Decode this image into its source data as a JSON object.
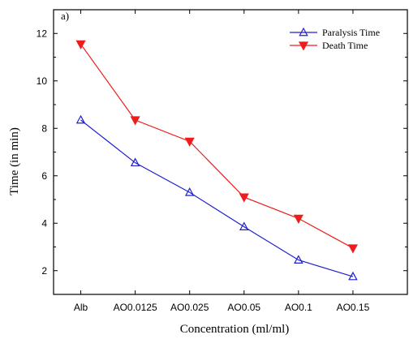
{
  "chart_data": {
    "type": "line",
    "panel_label": "a)",
    "xlabel": "Concentration (ml/ml)",
    "ylabel": "Time (in min)",
    "categories": [
      "Alb",
      "AO0.0125",
      "AO0.025",
      "AO0.05",
      "AO0.1",
      "AO0.15"
    ],
    "ylim": [
      1,
      13
    ],
    "yticks": [
      "2",
      "4",
      "6",
      "8",
      "10",
      "12"
    ],
    "grid": false,
    "legend_position": "top-right",
    "series": [
      {
        "name": "Paralysis Time",
        "color": "#1f1fd0",
        "marker": "triangle-up-open",
        "values": [
          8.35,
          6.55,
          5.3,
          3.85,
          2.45,
          1.75
        ]
      },
      {
        "name": "Death Time",
        "color": "#ee1c1c",
        "marker": "triangle-down-filled",
        "values": [
          11.55,
          8.35,
          7.45,
          5.1,
          4.2,
          2.95
        ]
      }
    ]
  }
}
